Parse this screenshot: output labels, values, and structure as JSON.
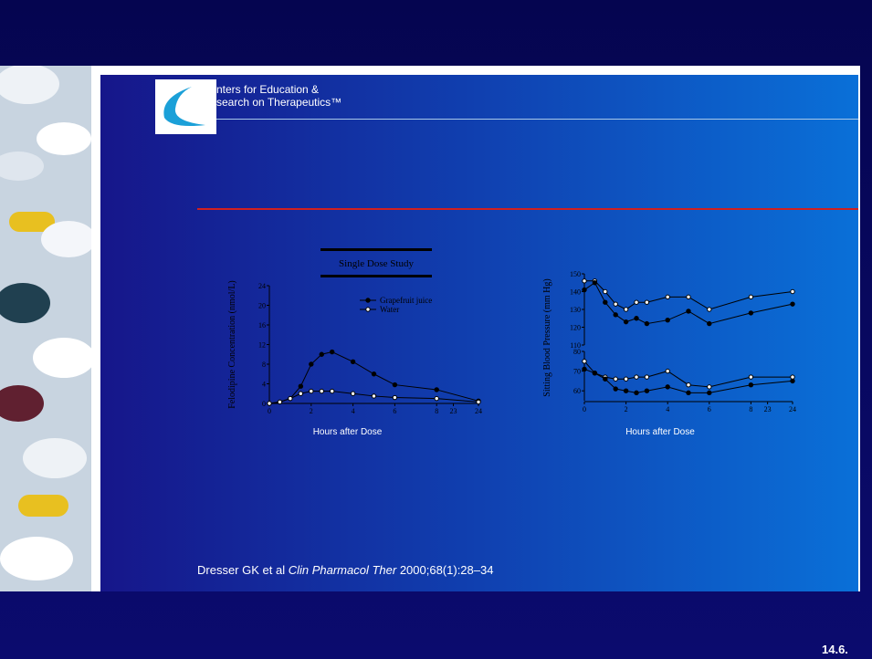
{
  "header": {
    "line1": "nters for Education &",
    "line2": "search on Therapeutics™"
  },
  "figures": [
    {
      "type": "line",
      "title": "Single Dose Study",
      "ylabel": "Felodipine Concentration (nmol/L)",
      "xlabel": "Hours after Dose",
      "xticks": [
        0,
        2,
        4,
        6,
        8,
        23,
        24
      ],
      "panels": [
        {
          "ylim": [
            0,
            24
          ],
          "yticks": [
            0,
            4,
            8,
            12,
            16,
            20,
            24
          ],
          "series": [
            {
              "name": "Grapefruit juice",
              "filled": true,
              "x": [
                0,
                0.5,
                1,
                1.5,
                2,
                2.5,
                3,
                4,
                5,
                6,
                8,
                24
              ],
              "values": [
                0,
                0.3,
                1,
                3.5,
                8,
                10,
                10.5,
                8.5,
                6,
                3.8,
                2.8,
                0.5
              ]
            },
            {
              "name": "Water",
              "filled": false,
              "x": [
                0,
                0.5,
                1,
                1.5,
                2,
                2.5,
                3,
                4,
                5,
                6,
                8,
                24
              ],
              "values": [
                0,
                0.3,
                1,
                2,
                2.5,
                2.5,
                2.5,
                2,
                1.5,
                1.2,
                1,
                0.3
              ]
            }
          ]
        }
      ]
    },
    {
      "type": "line",
      "ylabel": "Sitting Blood Pressure (mm Hg)",
      "xlabel": "Hours after Dose",
      "xticks": [
        0,
        2,
        4,
        6,
        8,
        23,
        24
      ],
      "panels": [
        {
          "ylim": [
            110,
            150
          ],
          "yticks": [
            110,
            120,
            130,
            140,
            150
          ],
          "series": [
            {
              "filled": false,
              "x": [
                0,
                0.5,
                1,
                1.5,
                2,
                2.5,
                3,
                4,
                5,
                6,
                8,
                24
              ],
              "values": [
                146,
                146,
                140,
                133,
                130,
                134,
                134,
                137,
                137,
                130,
                137,
                140
              ]
            },
            {
              "filled": true,
              "x": [
                0,
                0.5,
                1,
                1.5,
                2,
                2.5,
                3,
                4,
                5,
                6,
                8,
                24
              ],
              "values": [
                141,
                145,
                134,
                127,
                123,
                125,
                122,
                124,
                129,
                122,
                128,
                133
              ]
            }
          ]
        },
        {
          "ylim": [
            55,
            80
          ],
          "yticks": [
            60,
            70,
            80
          ],
          "series": [
            {
              "filled": false,
              "x": [
                0,
                0.5,
                1,
                1.5,
                2,
                2.5,
                3,
                4,
                5,
                6,
                8,
                24
              ],
              "values": [
                75,
                69,
                67,
                66,
                66,
                67,
                67,
                70,
                63,
                62,
                67,
                67
              ]
            },
            {
              "filled": true,
              "x": [
                0,
                0.5,
                1,
                1.5,
                2,
                2.5,
                3,
                4,
                5,
                6,
                8,
                24
              ],
              "values": [
                71,
                69,
                66,
                61,
                60,
                59,
                60,
                62,
                59,
                59,
                63,
                65
              ]
            }
          ]
        }
      ]
    }
  ],
  "citation": {
    "authors": "Dresser GK et al ",
    "journal": "Clin Pharmacol Ther",
    "ref": " 2000;68(1):28–34"
  },
  "slide_number": "14.6."
}
